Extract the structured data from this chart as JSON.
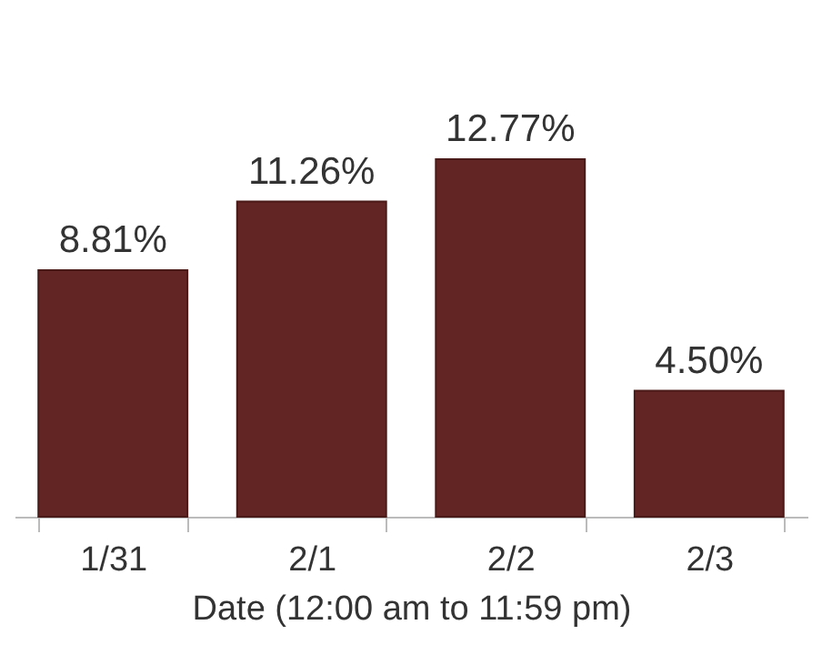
{
  "chart_data": {
    "type": "bar",
    "xlabel": "Date (12:00 am to 11:59 pm)",
    "categories": [
      "1/31",
      "2/1",
      "2/2",
      "2/3"
    ],
    "values": [
      8.81,
      11.26,
      12.77,
      4.5
    ],
    "value_labels": [
      "8.81%",
      "11.26%",
      "12.77%",
      "4.50%"
    ],
    "color": "#632523"
  }
}
